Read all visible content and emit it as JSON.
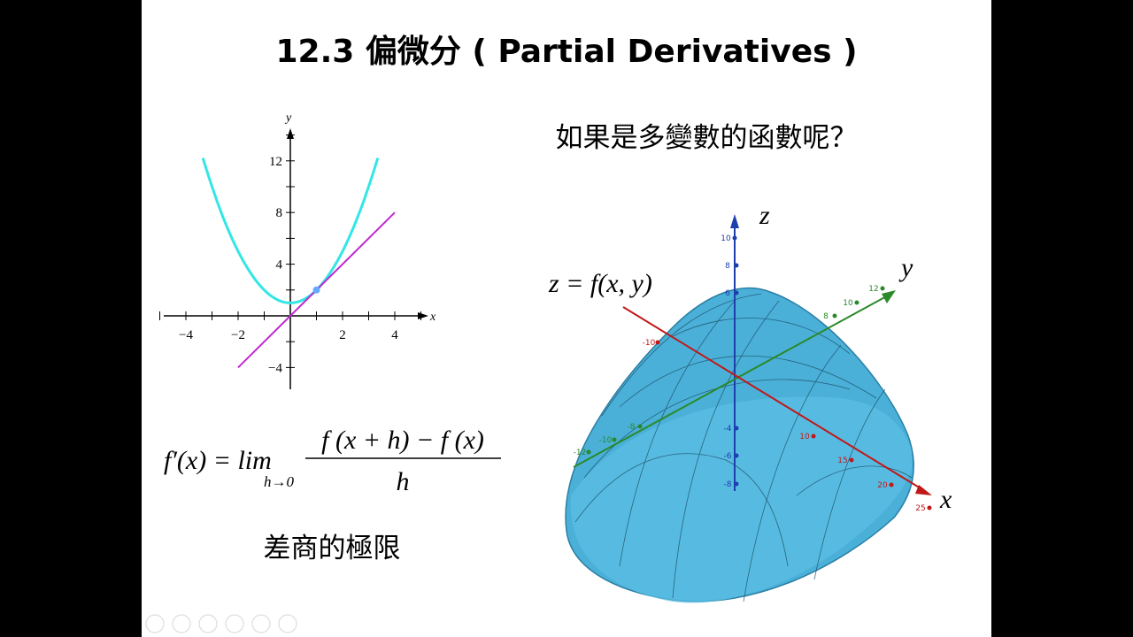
{
  "slide": {
    "title": "12.3  偏微分 ( Partial Derivatives )",
    "question": "如果是多變數的函數呢？",
    "surface_label": "z = f(x, y)",
    "caption": "差商的極限"
  },
  "graph2d": {
    "x_label": "x",
    "y_label": "y",
    "x_ticks": [
      {
        "value": -4,
        "label": "−4"
      },
      {
        "value": -2,
        "label": "−2"
      },
      2,
      4
    ],
    "y_ticks": [
      12,
      8,
      4,
      {
        "value": -4,
        "label": "−4"
      }
    ]
  },
  "formula": {
    "lhs": "f′(x) = lim",
    "limit": "h→0",
    "numerator": "f (x + h) − f (x)",
    "denominator": "h"
  },
  "graph3d": {
    "axis_z": "z",
    "axis_y": "y",
    "axis_x": "x",
    "z_ticks": [
      "10",
      "8",
      "6",
      "-4",
      "-6",
      "-8"
    ],
    "y_ticks": [
      "12",
      "10",
      "8",
      "-8",
      "-10",
      "-12"
    ],
    "x_ticks": [
      "-10",
      "10",
      "15",
      "20",
      "25"
    ]
  }
}
